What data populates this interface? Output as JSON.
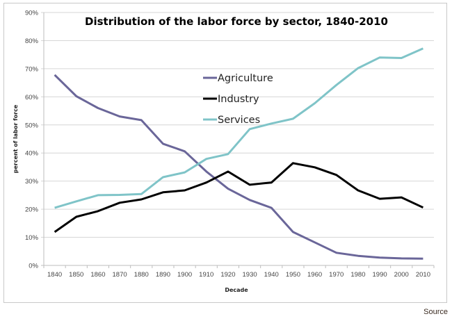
{
  "chart_data": {
    "type": "line",
    "title": "Distribution of the labor force by sector, 1840-2010",
    "xlabel": "Decade",
    "ylabel": "percent of labor force",
    "ylim": [
      0,
      90
    ],
    "yticks": [
      "0%",
      "10%",
      "20%",
      "30%",
      "40%",
      "50%",
      "60%",
      "70%",
      "80%",
      "90%"
    ],
    "grid": true,
    "legend_position": "upper-center",
    "categories": [
      "1840",
      "1850",
      "1860",
      "1870",
      "1880",
      "1890",
      "1900",
      "1910",
      "1920",
      "1930",
      "1940",
      "1950",
      "1960",
      "1970",
      "1980",
      "1990",
      "2000",
      "2010"
    ],
    "series": [
      {
        "name": "Agriculture",
        "color": "#6a6699",
        "values": [
          67.8,
          60.2,
          56.0,
          53.0,
          51.7,
          43.3,
          40.6,
          33.4,
          27.3,
          23.3,
          20.5,
          11.9,
          8.2,
          4.5,
          3.4,
          2.8,
          2.5,
          2.4
        ]
      },
      {
        "name": "Industry",
        "color": "#000000",
        "values": [
          11.9,
          17.3,
          19.3,
          22.3,
          23.5,
          26.0,
          26.7,
          29.5,
          33.4,
          28.7,
          29.5,
          36.4,
          34.9,
          32.2,
          26.7,
          23.7,
          24.2,
          20.6
        ]
      },
      {
        "name": "Services",
        "color": "#7fc4c8",
        "values": [
          20.5,
          22.8,
          25.0,
          25.1,
          25.4,
          31.4,
          33.1,
          37.9,
          39.6,
          48.5,
          50.5,
          52.2,
          57.7,
          64.2,
          70.2,
          74.0,
          73.8,
          77.2
        ]
      }
    ]
  },
  "footer": {
    "source_label": "Source"
  }
}
